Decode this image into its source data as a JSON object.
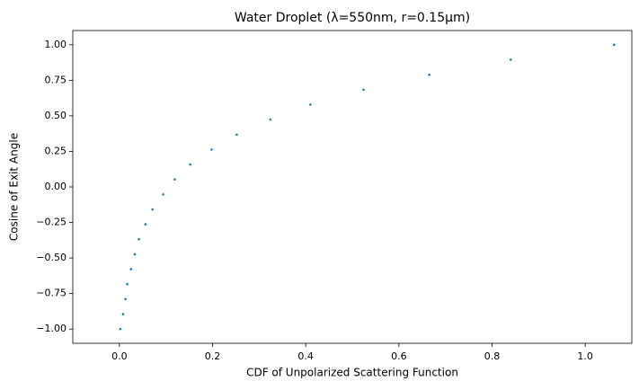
{
  "chart_data": {
    "type": "scatter",
    "title": "Water Droplet (λ=550nm, r=0.15μm)",
    "x_label": "CDF of Unpolarized Scattering Function",
    "y_label": "Cosine of Exit Angle",
    "color": "#1f77b4",
    "x": [
      0.002,
      0.008,
      0.013,
      0.017,
      0.025,
      0.033,
      0.042,
      0.056,
      0.071,
      0.094,
      0.119,
      0.152,
      0.198,
      0.252,
      0.324,
      0.41,
      0.524,
      0.665,
      0.84,
      1.062
    ],
    "values": [
      -1.0,
      -0.895,
      -0.789,
      -0.684,
      -0.579,
      -0.474,
      -0.368,
      -0.263,
      -0.158,
      -0.053,
      0.053,
      0.158,
      0.263,
      0.368,
      0.474,
      0.579,
      0.684,
      0.789,
      0.895,
      1.0
    ],
    "xlim": [
      -0.1,
      1.1
    ],
    "ylim": [
      -1.1,
      1.1
    ],
    "xticks": [
      {
        "value": 0,
        "label": "0.0"
      },
      {
        "value": 0.2,
        "label": "0.2"
      },
      {
        "value": 0.4,
        "label": "0.4"
      },
      {
        "value": 0.6,
        "label": "0.6"
      },
      {
        "value": 0.8,
        "label": "0.8"
      },
      {
        "value": 1,
        "label": "1.0"
      }
    ],
    "yticks": [
      {
        "value": -1,
        "label": "−1.00"
      },
      {
        "value": -0.75,
        "label": "−0.75"
      },
      {
        "value": -0.5,
        "label": "−0.50"
      },
      {
        "value": -0.25,
        "label": "−0.25"
      },
      {
        "value": 0,
        "label": "0.00"
      },
      {
        "value": 0.25,
        "label": "0.25"
      },
      {
        "value": 0.5,
        "label": "0.50"
      },
      {
        "value": 0.75,
        "label": "0.75"
      },
      {
        "value": 1,
        "label": "1.00"
      }
    ],
    "grid": false
  }
}
